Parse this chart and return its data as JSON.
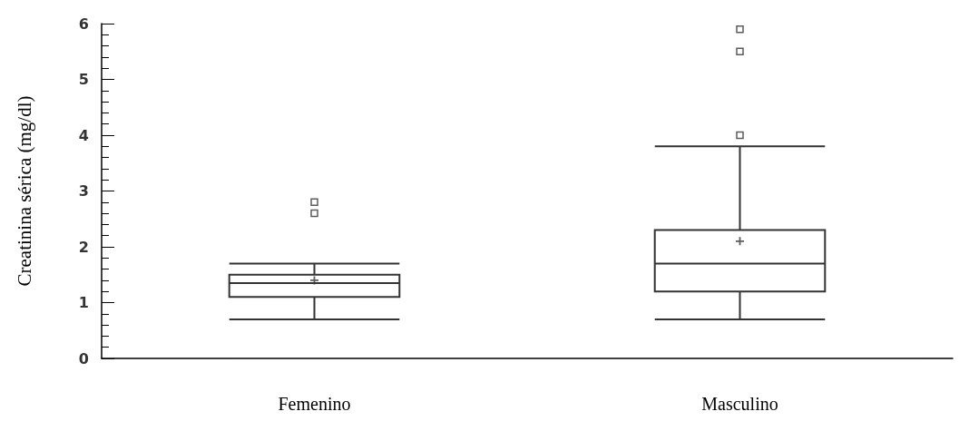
{
  "chart_data": {
    "type": "box",
    "ylabel": "Creatinina sérica (mg/dl)",
    "categories": [
      "Femenino",
      "Masculino"
    ],
    "boxes": [
      {
        "low": 0.7,
        "q1": 1.1,
        "median": 1.35,
        "q3": 1.5,
        "high": 1.7,
        "mean": 1.4,
        "outliers": [
          2.6,
          2.8
        ]
      },
      {
        "low": 0.7,
        "q1": 1.2,
        "median": 1.7,
        "q3": 2.3,
        "high": 3.8,
        "mean": 2.1,
        "outliers": [
          4.0,
          5.5,
          5.9
        ]
      }
    ],
    "color": "#333333",
    "ylim": [
      0,
      6
    ],
    "yticks": [
      0,
      1,
      2,
      3,
      4,
      5,
      6
    ],
    "grid": false
  }
}
